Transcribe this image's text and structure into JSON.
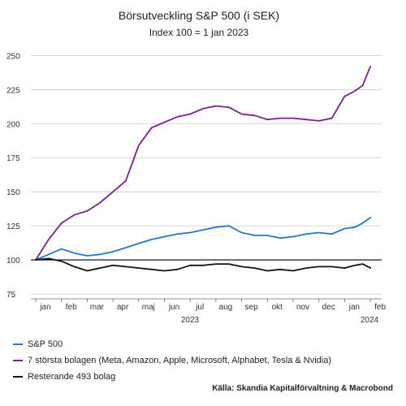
{
  "chart_data": {
    "type": "line",
    "title": "Börsutveckling S&P 500 (i SEK)",
    "subtitle": "Index 100 = 1 jan 2023",
    "xlabel": "",
    "ylabel": "",
    "ylim": [
      75,
      255
    ],
    "yticks": [
      75,
      100,
      125,
      150,
      175,
      200,
      225,
      250
    ],
    "reference_line": 100,
    "grid": "horizontal",
    "xticks": [
      "jan",
      "feb",
      "mar",
      "apr",
      "maj",
      "jun",
      "jul",
      "aug",
      "sep",
      "okt",
      "nov",
      "dec",
      "jan",
      "feb"
    ],
    "xyears": [
      {
        "label": "2023"
      },
      {
        "label": "2024"
      }
    ],
    "x_months": [
      0,
      0.5,
      1,
      1.5,
      2,
      2.5,
      3,
      3.5,
      4,
      4.5,
      5,
      5.5,
      6,
      6.5,
      7,
      7.5,
      8,
      8.5,
      9,
      9.5,
      10,
      10.5,
      11,
      11.5,
      12,
      12.4,
      12.7,
      13.0
    ],
    "series": [
      {
        "name": "S&P 500",
        "color": "#1f78d4",
        "values": [
          100,
          104,
          108,
          105,
          103,
          104,
          106,
          109,
          112,
          115,
          117,
          119,
          120,
          122,
          124,
          125,
          120,
          118,
          118,
          116,
          117,
          119,
          120,
          119,
          123,
          124,
          127,
          131
        ]
      },
      {
        "name": "7 största bolagen (Meta, Amazon, Apple, Microsoft, Alphabet, Tesla & Nvidia)",
        "color": "#7b1e8e",
        "values": [
          100,
          115,
          127,
          133,
          136,
          142,
          150,
          158,
          184,
          197,
          201,
          205,
          207,
          211,
          213,
          212,
          207,
          206,
          203,
          204,
          204,
          203,
          202,
          204,
          220,
          224,
          228,
          242
        ]
      },
      {
        "name": "Resterande 493 bolag",
        "color": "#111111",
        "values": [
          100,
          101,
          99,
          95,
          92,
          94,
          96,
          95,
          94,
          93,
          92,
          93,
          96,
          96,
          97,
          97,
          95,
          94,
          92,
          93,
          92,
          94,
          95,
          95,
          94,
          96,
          97,
          94
        ]
      }
    ]
  },
  "source": "Källa: Skandia Kapitalförvaltning & Macrobond"
}
